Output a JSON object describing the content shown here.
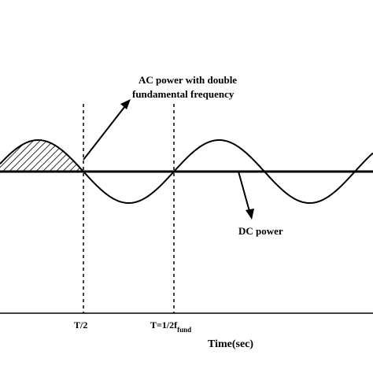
{
  "labels": {
    "ac_line1": "AC power with double",
    "ac_line2": "fundamental frequency",
    "dc": "DC power",
    "half_period": "T/2",
    "period_main": "T=1/2f",
    "period_sub": "fund",
    "x_axis": "Time(sec)"
  },
  "colors": {
    "line": "#000000",
    "background": "#ffffff"
  },
  "curves": {
    "dc_level": 0,
    "ac_waveform": "sinusoid",
    "ac_frequency_multiple_of_fundamental": 2,
    "shaded_region": "positive half-cycle before T/2",
    "shaded_fill": "diagonal hatching"
  }
}
